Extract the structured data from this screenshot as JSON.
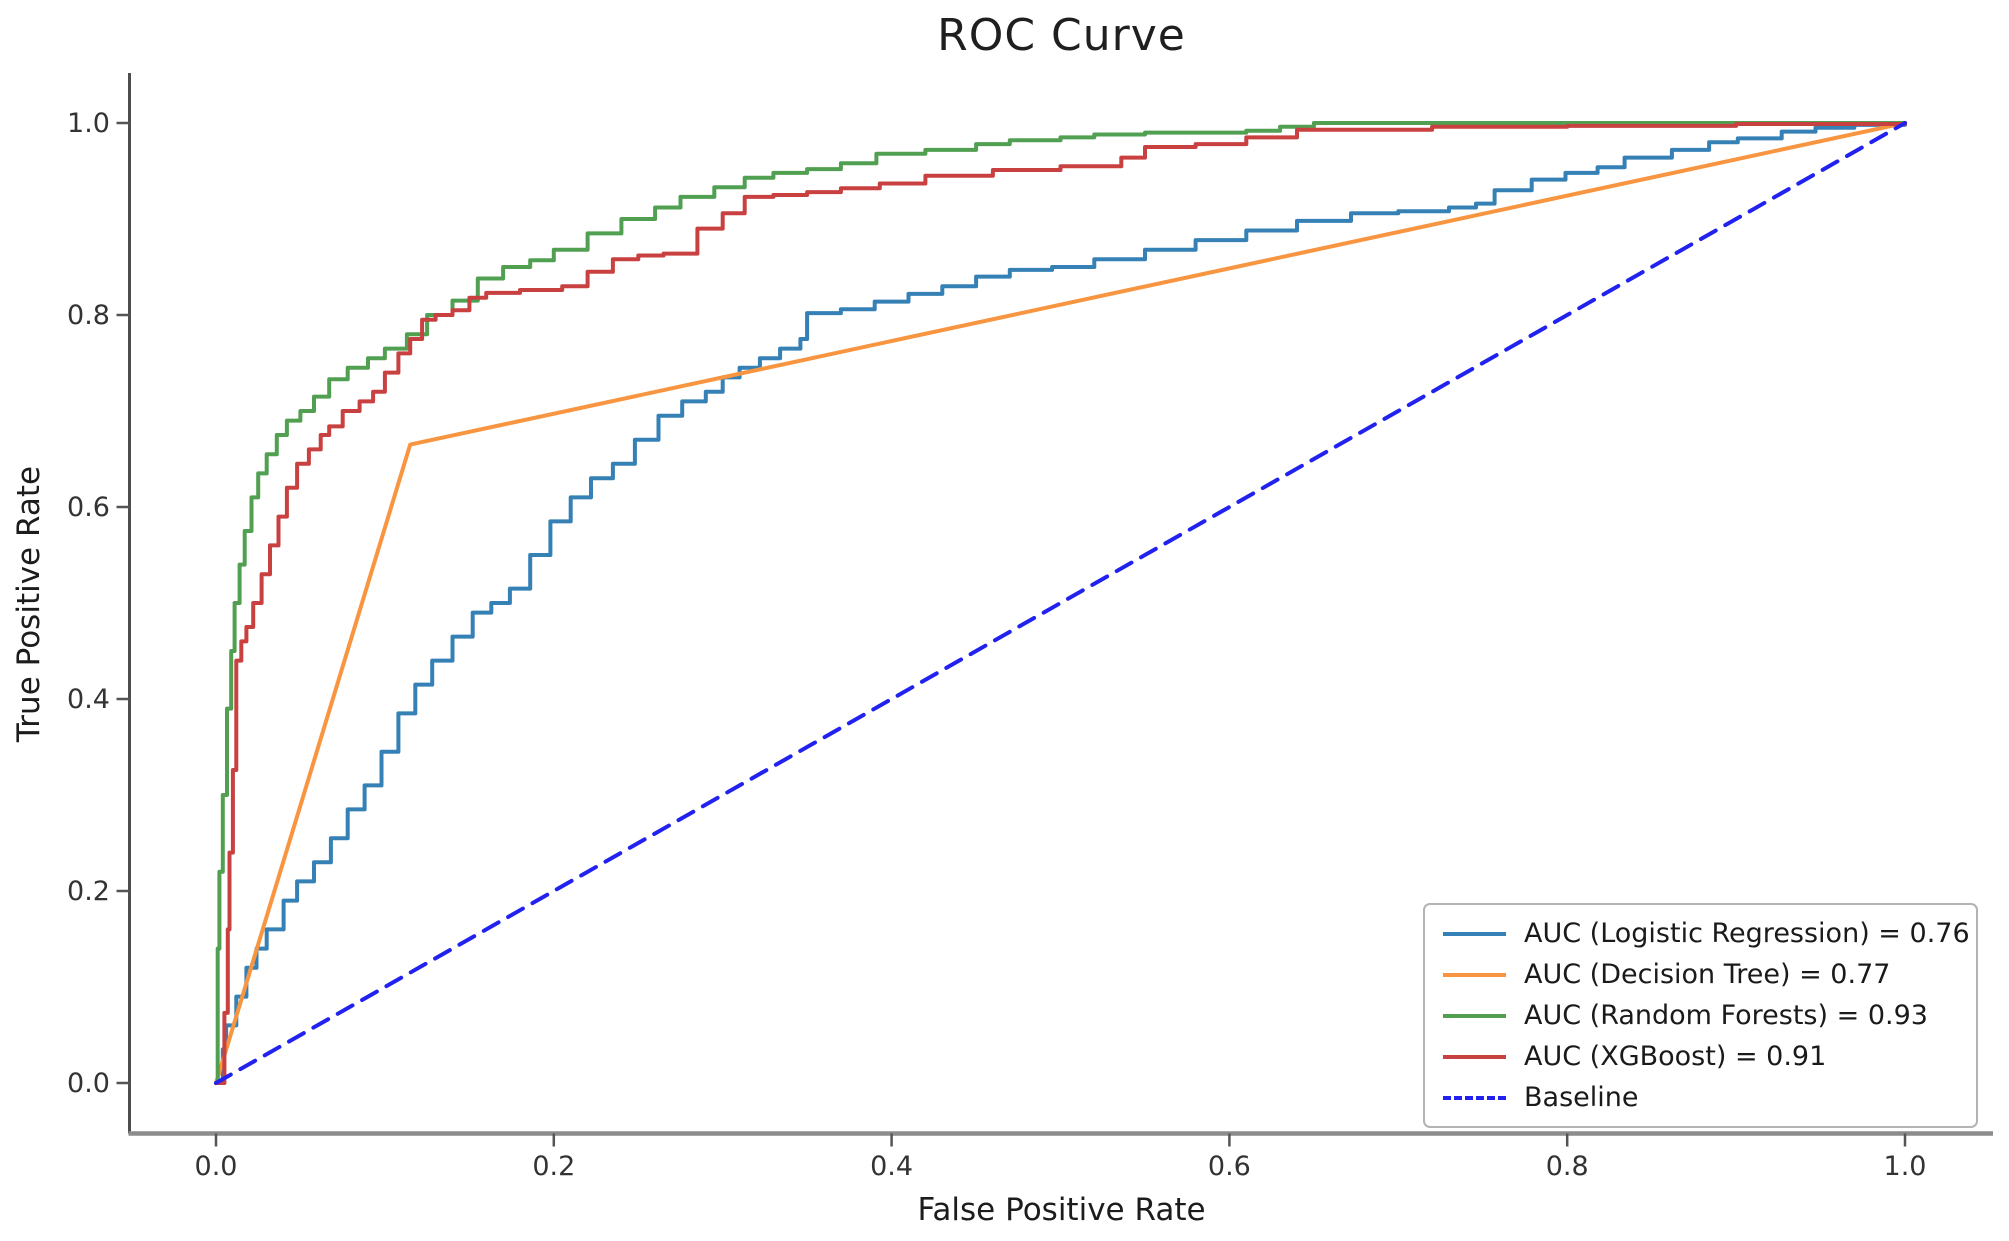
{
  "title": "ROC Curve",
  "axes": {
    "xlabel": "False Positive Rate",
    "ylabel": "True Positive Rate",
    "x_tick_labels": [
      "0.0",
      "0.2",
      "0.4",
      "0.6",
      "0.8",
      "1.0"
    ],
    "y_tick_labels": [
      "0.0",
      "0.2",
      "0.4",
      "0.6",
      "0.8",
      "1.0"
    ]
  },
  "legend": {
    "position": "lower right",
    "items": [
      {
        "label": "AUC (Logistic Regression) = 0.76",
        "color": "#3580b5",
        "dashed": false
      },
      {
        "label": "AUC (Decision Tree) = 0.77",
        "color": "#f89540",
        "dashed": false
      },
      {
        "label": "AUC (Random Forests) = 0.93",
        "color": "#51a052",
        "dashed": false
      },
      {
        "label": "AUC (XGBoost) = 0.91",
        "color": "#c94040",
        "dashed": false
      },
      {
        "label": "Baseline",
        "color": "#2222f0",
        "dashed": true
      }
    ]
  },
  "chart_data": {
    "type": "line",
    "title": "ROC Curve",
    "xlabel": "False Positive Rate",
    "ylabel": "True Positive Rate",
    "xlim": [
      0,
      1
    ],
    "ylim": [
      0,
      1
    ],
    "grid": false,
    "legend_position": "lower right",
    "series": [
      {
        "name": "AUC (Logistic Regression) = 0.76",
        "model": "Logistic Regression",
        "auc": 0.76,
        "color": "#3580b5",
        "dashed": false,
        "step": true,
        "x": [
          0,
          0.004,
          0.006,
          0.012,
          0.018,
          0.024,
          0.03,
          0.04,
          0.048,
          0.058,
          0.068,
          0.078,
          0.088,
          0.098,
          0.108,
          0.118,
          0.128,
          0.14,
          0.152,
          0.163,
          0.174,
          0.186,
          0.198,
          0.21,
          0.222,
          0.235,
          0.248,
          0.262,
          0.276,
          0.29,
          0.3,
          0.31,
          0.322,
          0.334,
          0.346,
          0.35,
          0.37,
          0.39,
          0.41,
          0.43,
          0.45,
          0.47,
          0.495,
          0.52,
          0.55,
          0.58,
          0.61,
          0.64,
          0.672,
          0.7,
          0.73,
          0.746,
          0.757,
          0.779,
          0.799,
          0.818,
          0.834,
          0.862,
          0.884,
          0.901,
          0.927,
          0.947,
          0.97,
          1.0
        ],
        "y": [
          0,
          0.035,
          0.06,
          0.09,
          0.12,
          0.14,
          0.16,
          0.19,
          0.21,
          0.23,
          0.255,
          0.285,
          0.31,
          0.345,
          0.385,
          0.415,
          0.44,
          0.465,
          0.49,
          0.5,
          0.515,
          0.55,
          0.585,
          0.61,
          0.63,
          0.645,
          0.67,
          0.695,
          0.71,
          0.72,
          0.735,
          0.745,
          0.755,
          0.765,
          0.775,
          0.802,
          0.806,
          0.814,
          0.822,
          0.83,
          0.84,
          0.847,
          0.85,
          0.858,
          0.868,
          0.878,
          0.888,
          0.898,
          0.906,
          0.908,
          0.912,
          0.916,
          0.93,
          0.941,
          0.948,
          0.954,
          0.964,
          0.972,
          0.98,
          0.984,
          0.991,
          0.995,
          0.998,
          1.0
        ]
      },
      {
        "name": "AUC (Decision Tree) = 0.77",
        "model": "Decision Tree",
        "auc": 0.77,
        "color": "#f89540",
        "dashed": false,
        "step": false,
        "x": [
          0,
          0.115,
          1.0
        ],
        "y": [
          0,
          0.665,
          1.0
        ]
      },
      {
        "name": "AUC (Random Forests) = 0.93",
        "model": "Random Forests",
        "auc": 0.93,
        "color": "#51a052",
        "dashed": false,
        "step": true,
        "x": [
          0,
          0.001,
          0.002,
          0.004,
          0.0065,
          0.009,
          0.011,
          0.014,
          0.017,
          0.021,
          0.025,
          0.03,
          0.036,
          0.042,
          0.05,
          0.058,
          0.067,
          0.078,
          0.09,
          0.1,
          0.113,
          0.125,
          0.14,
          0.155,
          0.17,
          0.186,
          0.2,
          0.22,
          0.24,
          0.26,
          0.275,
          0.295,
          0.313,
          0.33,
          0.35,
          0.37,
          0.391,
          0.42,
          0.45,
          0.47,
          0.5,
          0.52,
          0.55,
          0.58,
          0.61,
          0.63,
          0.65,
          0.7,
          0.8,
          0.9,
          1.0
        ],
        "y": [
          0,
          0.14,
          0.22,
          0.3,
          0.39,
          0.45,
          0.5,
          0.54,
          0.575,
          0.61,
          0.635,
          0.655,
          0.675,
          0.69,
          0.7,
          0.715,
          0.733,
          0.745,
          0.755,
          0.765,
          0.78,
          0.8,
          0.815,
          0.838,
          0.85,
          0.857,
          0.868,
          0.885,
          0.9,
          0.912,
          0.923,
          0.933,
          0.943,
          0.948,
          0.952,
          0.958,
          0.968,
          0.972,
          0.978,
          0.982,
          0.985,
          0.988,
          0.99,
          0.99,
          0.992,
          0.996,
          1.0,
          1.0,
          1.0,
          1.0,
          1.0
        ]
      },
      {
        "name": "AUC (XGBoost) = 0.91",
        "model": "XGBoost",
        "auc": 0.91,
        "color": "#c94040",
        "dashed": false,
        "step": true,
        "x": [
          0,
          0.005,
          0.007,
          0.008,
          0.01,
          0.012,
          0.015,
          0.018,
          0.022,
          0.027,
          0.032,
          0.037,
          0.042,
          0.048,
          0.055,
          0.062,
          0.067,
          0.075,
          0.085,
          0.093,
          0.1,
          0.108,
          0.115,
          0.122,
          0.13,
          0.14,
          0.15,
          0.16,
          0.18,
          0.205,
          0.22,
          0.235,
          0.25,
          0.265,
          0.285,
          0.3,
          0.313,
          0.33,
          0.35,
          0.37,
          0.393,
          0.42,
          0.46,
          0.5,
          0.536,
          0.55,
          0.58,
          0.61,
          0.64,
          0.7,
          0.72,
          0.8,
          0.9,
          1.0
        ],
        "y": [
          0,
          0.073,
          0.16,
          0.24,
          0.326,
          0.44,
          0.46,
          0.475,
          0.5,
          0.53,
          0.56,
          0.59,
          0.62,
          0.645,
          0.66,
          0.675,
          0.684,
          0.7,
          0.71,
          0.72,
          0.74,
          0.76,
          0.775,
          0.795,
          0.8,
          0.805,
          0.818,
          0.823,
          0.826,
          0.83,
          0.845,
          0.858,
          0.862,
          0.864,
          0.89,
          0.906,
          0.923,
          0.925,
          0.928,
          0.932,
          0.937,
          0.945,
          0.951,
          0.955,
          0.964,
          0.975,
          0.978,
          0.985,
          0.993,
          0.993,
          0.996,
          0.997,
          0.999,
          1.0
        ]
      },
      {
        "name": "Baseline",
        "model": "Baseline",
        "color": "#2222f0",
        "dashed": true,
        "step": false,
        "x": [
          0,
          1.0
        ],
        "y": [
          0,
          1.0
        ]
      }
    ]
  }
}
